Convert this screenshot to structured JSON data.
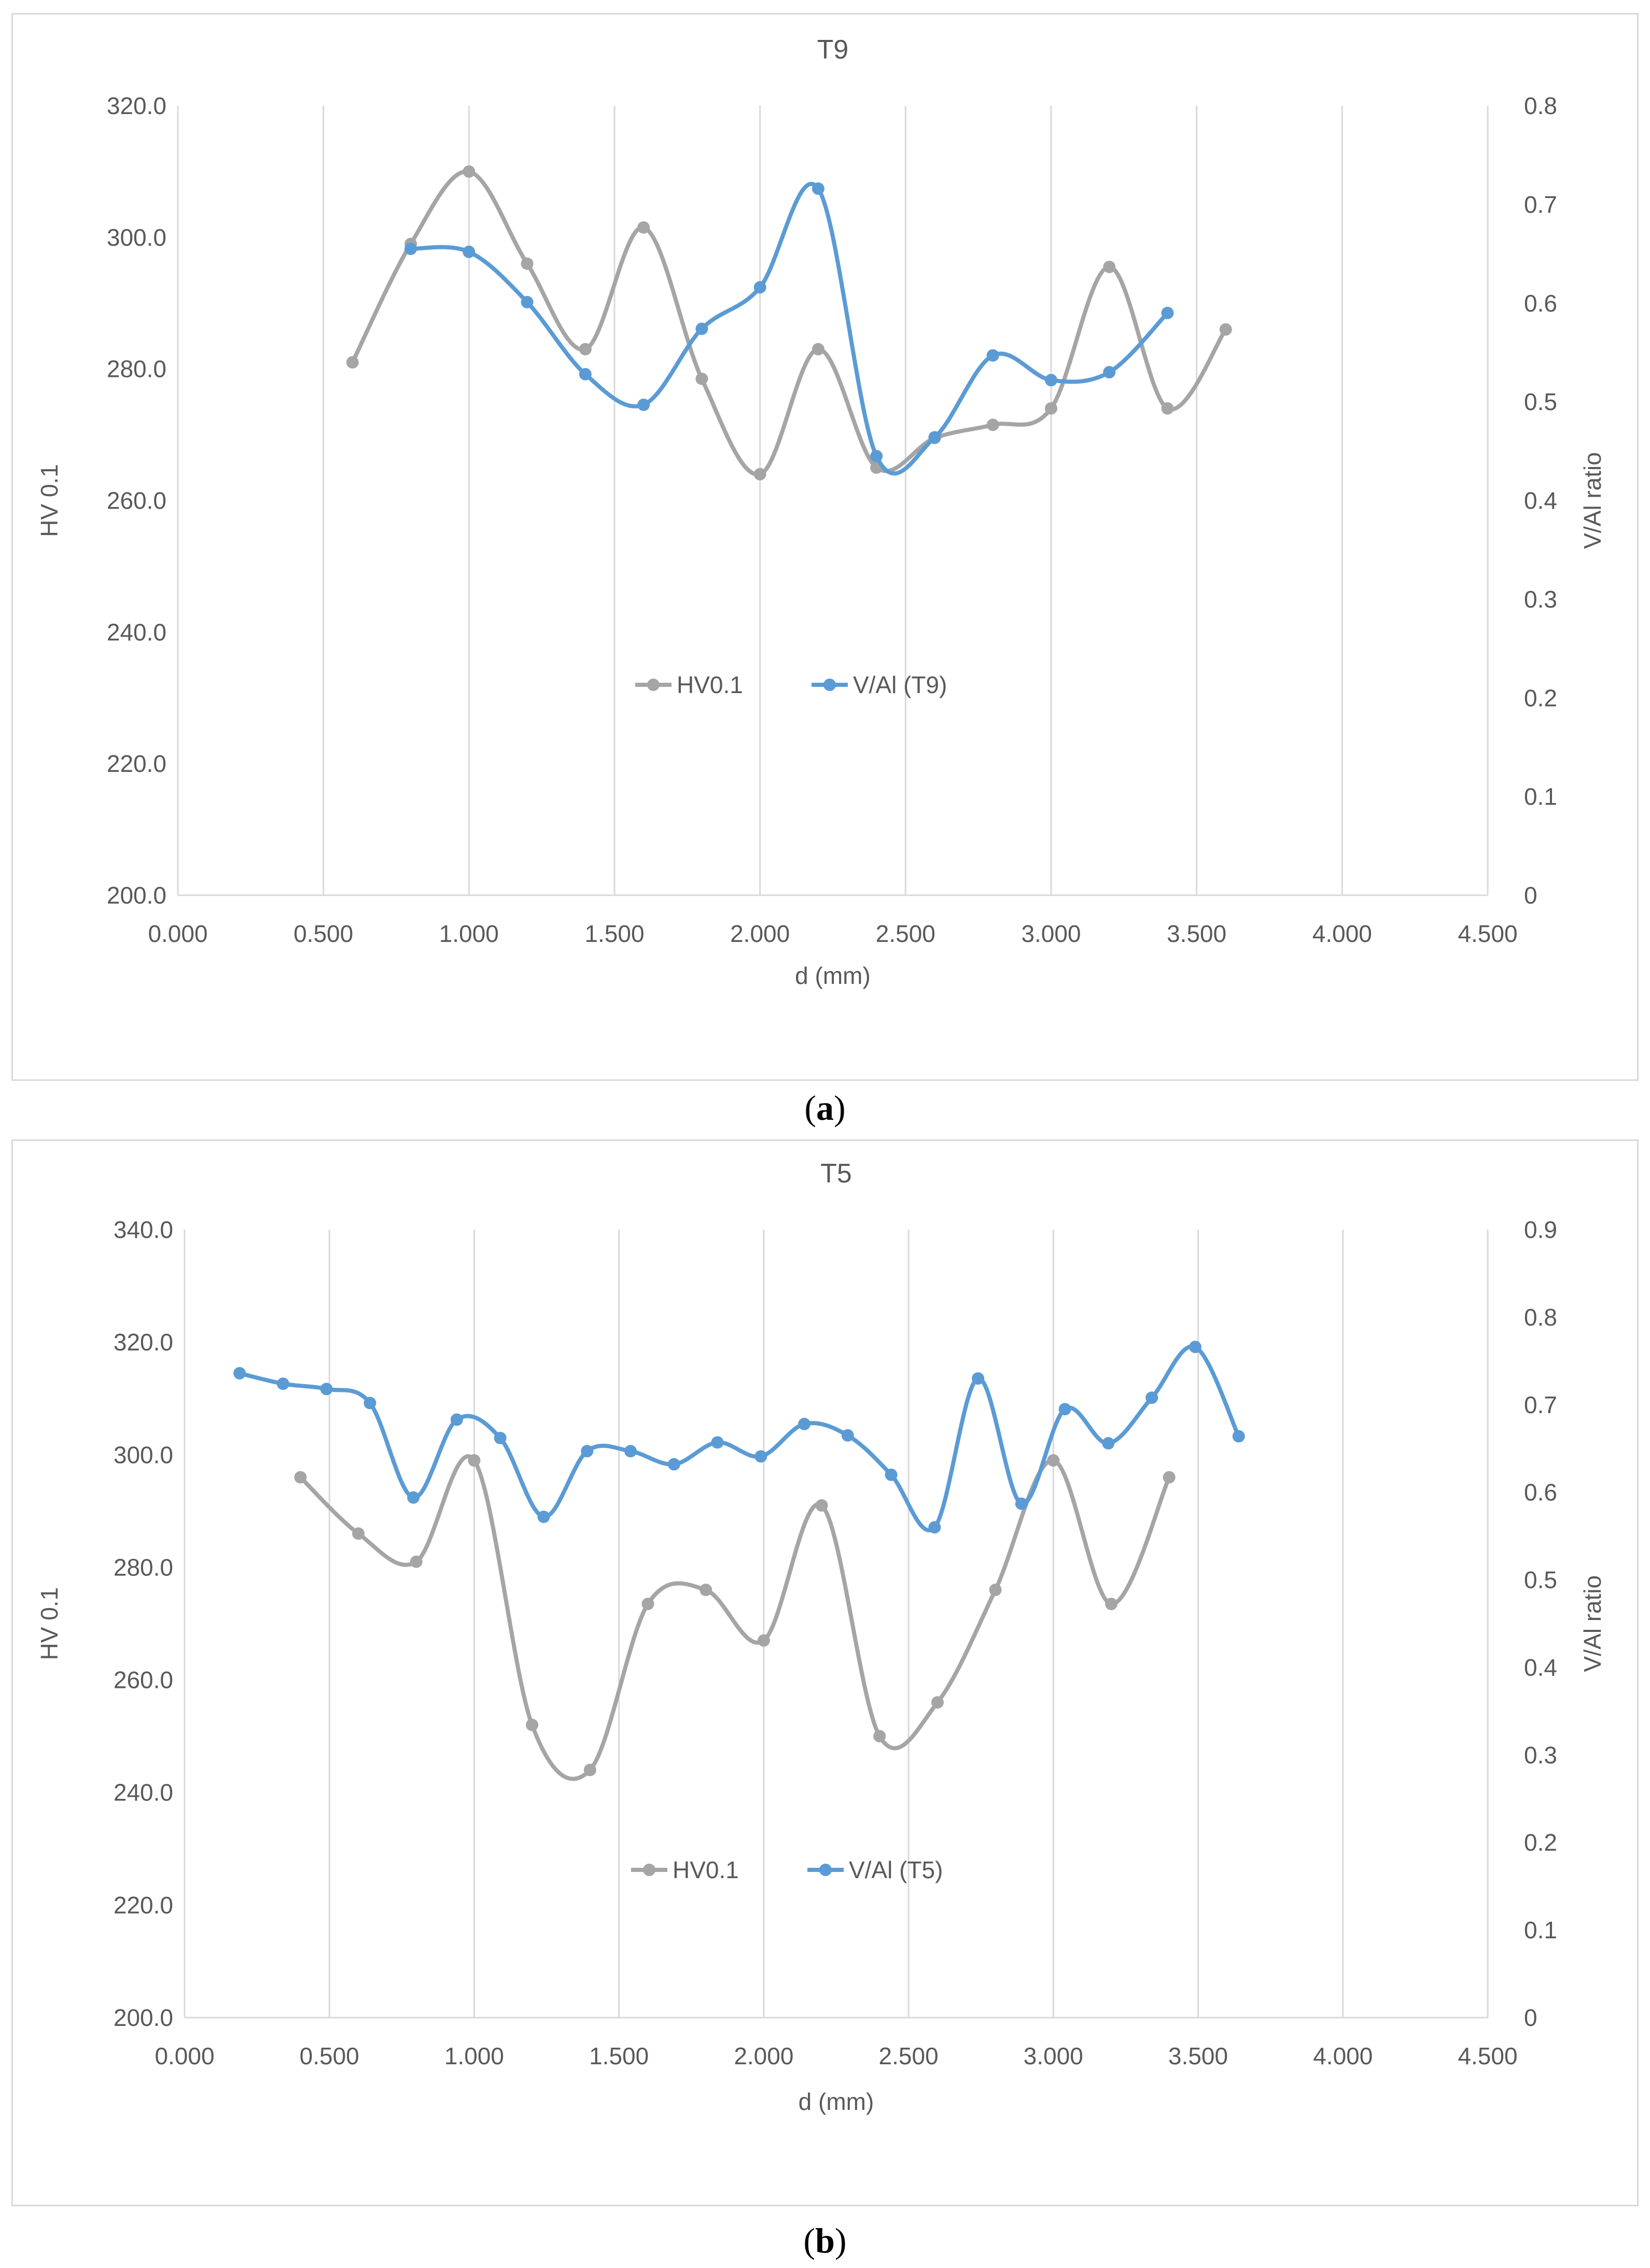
{
  "chart_data": [
    {
      "type": "line",
      "title": "T9",
      "caption_letter": "a",
      "xlabel": "d (mm)",
      "ylabel": "HV 0.1",
      "y2label": "V/Al ratio",
      "xlim": [
        0,
        4.5
      ],
      "ylim": [
        200,
        320
      ],
      "y2lim": [
        0,
        0.8
      ],
      "xticks": [
        0,
        0.5,
        1,
        1.5,
        2,
        2.5,
        3,
        3.5,
        4,
        4.5
      ],
      "xtick_labels": [
        "0.000",
        "0.500",
        "1.000",
        "1.500",
        "2.000",
        "2.500",
        "3.000",
        "3.500",
        "4.000",
        "4.500"
      ],
      "yticks": [
        200,
        220,
        240,
        260,
        280,
        300,
        320
      ],
      "ytick_labels": [
        "200.0",
        "220.0",
        "240.0",
        "260.0",
        "280.0",
        "300.0",
        "320.0"
      ],
      "y2ticks": [
        0,
        0.1,
        0.2,
        0.3,
        0.4,
        0.5,
        0.6,
        0.7,
        0.8
      ],
      "y2tick_labels": [
        "0",
        "0.1",
        "0.2",
        "0.3",
        "0.4",
        "0.5",
        "0.6",
        "0.7",
        "0.8"
      ],
      "grid": "vertical",
      "legend_position": "center",
      "series": [
        {
          "name": "HV0.1",
          "axis": "left",
          "color": "#a5a5a5",
          "x": [
            0.6,
            0.8,
            1.0,
            1.2,
            1.4,
            1.6,
            1.8,
            2.0,
            2.2,
            2.4,
            2.6,
            2.8,
            3.0,
            3.2,
            3.4,
            3.6
          ],
          "values": [
            281,
            299,
            310,
            296,
            283,
            301.5,
            278.5,
            264,
            283,
            265,
            269.5,
            271.5,
            274,
            295.5,
            274,
            286
          ]
        },
        {
          "name": "V/Al (T9)",
          "axis": "right",
          "color": "#5b9bd5",
          "x": [
            0.8,
            1.0,
            1.2,
            1.4,
            1.6,
            1.8,
            2.0,
            2.2,
            2.4,
            2.6,
            2.8,
            3.0,
            3.2,
            3.4
          ],
          "values": [
            0.655,
            0.652,
            0.601,
            0.528,
            0.497,
            0.574,
            0.616,
            0.716,
            0.445,
            0.464,
            0.547,
            0.522,
            0.53,
            0.59
          ]
        }
      ]
    },
    {
      "type": "line",
      "title": "T5",
      "caption_letter": "b",
      "xlabel": "d (mm)",
      "ylabel": "HV 0.1",
      "y2label": "V/Al ratio",
      "xlim": [
        0,
        4.5
      ],
      "ylim": [
        200,
        340
      ],
      "y2lim": [
        0,
        0.9
      ],
      "xticks": [
        0,
        0.5,
        1,
        1.5,
        2,
        2.5,
        3,
        3.5,
        4,
        4.5
      ],
      "xtick_labels": [
        "0.000",
        "0.500",
        "1.000",
        "1.500",
        "2.000",
        "2.500",
        "3.000",
        "3.500",
        "4.000",
        "4.500"
      ],
      "yticks": [
        200,
        220,
        240,
        260,
        280,
        300,
        320,
        340
      ],
      "ytick_labels": [
        "200.0",
        "220.0",
        "240.0",
        "260.0",
        "280.0",
        "300.0",
        "320.0",
        "340.0"
      ],
      "y2ticks": [
        0,
        0.1,
        0.2,
        0.3,
        0.4,
        0.5,
        0.6,
        0.7,
        0.8,
        0.9
      ],
      "y2tick_labels": [
        "0",
        "0.1",
        "0.2",
        "0.3",
        "0.4",
        "0.5",
        "0.6",
        "0.7",
        "0.8",
        "0.9"
      ],
      "grid": "vertical",
      "legend_position": "center",
      "series": [
        {
          "name": "HV0.1",
          "axis": "left",
          "color": "#a5a5a5",
          "x": [
            0.4,
            0.6,
            0.8,
            1.0,
            1.2,
            1.4,
            1.6,
            1.8,
            2.0,
            2.2,
            2.4,
            2.6,
            2.8,
            3.0,
            3.2,
            3.4
          ],
          "values": [
            296,
            286,
            281,
            299,
            252,
            244,
            273.5,
            276,
            267,
            291,
            250,
            256,
            276,
            299,
            273.5,
            296
          ]
        },
        {
          "name": "V/Al (T5)",
          "axis": "right",
          "color": "#5b9bd5",
          "x": [
            0.19,
            0.34,
            0.49,
            0.64,
            0.79,
            0.94,
            1.09,
            1.24,
            1.39,
            1.54,
            1.69,
            1.84,
            1.99,
            2.14,
            2.29,
            2.44,
            2.59,
            2.74,
            2.89,
            3.04,
            3.19,
            3.34,
            3.49,
            3.64
          ],
          "values": [
            0.736,
            0.724,
            0.718,
            0.702,
            0.594,
            0.683,
            0.662,
            0.572,
            0.647,
            0.647,
            0.632,
            0.657,
            0.641,
            0.678,
            0.665,
            0.62,
            0.56,
            0.73,
            0.587,
            0.695,
            0.656,
            0.708,
            0.766,
            0.664
          ]
        }
      ]
    }
  ]
}
